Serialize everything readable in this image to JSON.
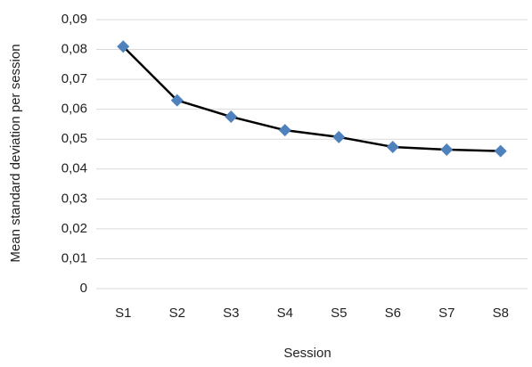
{
  "chart_data": {
    "type": "line",
    "x_label": "Session",
    "y_label": "Mean standard deviation per session",
    "categories": [
      "S1",
      "S2",
      "S3",
      "S4",
      "S5",
      "S6",
      "S7",
      "S8"
    ],
    "series": [
      {
        "color": "#4f81bd",
        "line_color": "#000000",
        "values": [
          0.081,
          0.063,
          0.0575,
          0.053,
          0.0507,
          0.0474,
          0.0465,
          0.046
        ]
      }
    ],
    "ylim": [
      0,
      0.09
    ],
    "yticks": [
      0,
      {
        "value": 0.01,
        "label": "0,01"
      },
      {
        "value": 0.02,
        "label": "0,02"
      },
      {
        "value": 0.03,
        "label": "0,03"
      },
      {
        "value": 0.04,
        "label": "0,04"
      },
      {
        "value": 0.05,
        "label": "0,05"
      },
      {
        "value": 0.06,
        "label": "0,06"
      },
      {
        "value": 0.07,
        "label": "0,07"
      },
      {
        "value": 0.08,
        "label": "0,08"
      },
      {
        "value": 0.09,
        "label": "0,09"
      }
    ],
    "grid": true
  }
}
